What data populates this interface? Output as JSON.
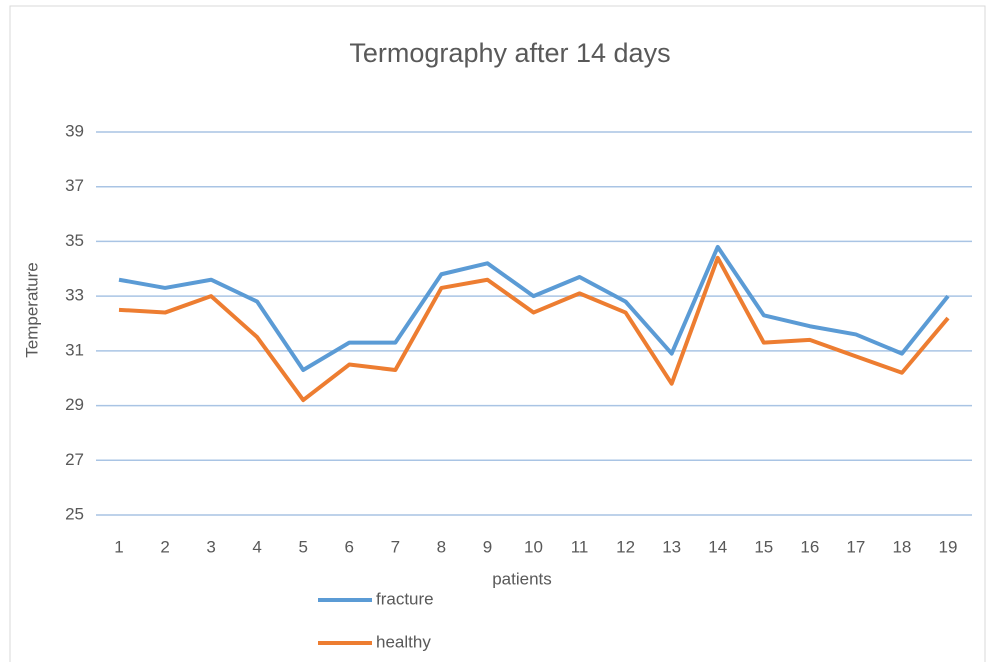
{
  "chart_data": {
    "type": "line",
    "title": "Termography after 14 days",
    "x_label": "patients",
    "y_label": "Temperature",
    "categories": [
      "1",
      "2",
      "3",
      "4",
      "5",
      "6",
      "7",
      "8",
      "9",
      "10",
      "11",
      "12",
      "13",
      "14",
      "15",
      "16",
      "17",
      "18",
      "19"
    ],
    "series": [
      {
        "name": "fracture",
        "color": "#5b9bd5",
        "values": [
          33.6,
          33.3,
          33.6,
          32.8,
          30.3,
          31.3,
          31.3,
          33.8,
          34.2,
          33.0,
          33.7,
          32.8,
          30.9,
          34.8,
          32.3,
          31.9,
          31.6,
          30.9,
          33.0
        ]
      },
      {
        "name": "healthy",
        "color": "#ed7d31",
        "values": [
          32.5,
          32.4,
          33.0,
          31.5,
          29.2,
          30.5,
          30.3,
          33.3,
          33.6,
          32.4,
          33.1,
          32.4,
          29.8,
          34.4,
          31.3,
          31.4,
          30.8,
          30.2,
          32.2
        ]
      }
    ],
    "ylim": [
      25,
      39
    ],
    "yticks": [
      25,
      27,
      29,
      31,
      33,
      35,
      37,
      39
    ],
    "grid": true,
    "legend": "bottom"
  }
}
